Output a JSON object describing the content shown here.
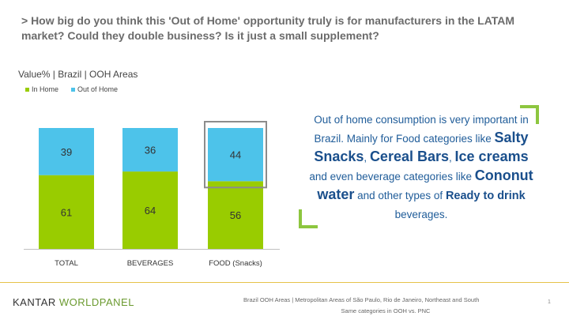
{
  "question": "> How big do you think this 'Out of Home' opportunity truly is for manufacturers in the LATAM market? Could they double business? Is it just a small supplement?",
  "subtitle": "Value% | Brazil | OOH Areas",
  "legend": [
    {
      "label": "In Home",
      "color": "#99cc00"
    },
    {
      "label": "Out of Home",
      "color": "#4dc3ea"
    }
  ],
  "chart_data": {
    "type": "bar",
    "stacked": true,
    "categories": [
      "TOTAL",
      "BEVERAGES",
      "FOOD (Snacks)"
    ],
    "series": [
      {
        "name": "In Home",
        "values": [
          61,
          64,
          56
        ],
        "color": "#99cc00"
      },
      {
        "name": "Out of Home",
        "values": [
          39,
          36,
          44
        ],
        "color": "#4dc3ea"
      }
    ],
    "title": "Value% | Brazil | OOH Areas",
    "xlabel": "",
    "ylabel": "",
    "ylim": [
      0,
      100
    ],
    "highlighted_category": "FOOD (Snacks)",
    "grid": false,
    "legend_position": "top-left"
  },
  "callout": {
    "p1": "Out of home consumption is very important in Brazil. Mainly for Food categories like ",
    "k1": "Salty Snacks",
    "p2": ", ",
    "k2": "Cereal Bars",
    "p3": ", ",
    "k3": "Ice creams",
    "p4": " and even beverage categories like ",
    "k4": "Cononut water",
    "p5": " and other types of ",
    "k5": "Ready to drink",
    "p6": " beverages."
  },
  "logo": {
    "part1": "KANTAR ",
    "part2": "WORLDPANEL"
  },
  "footnote": {
    "line1": "Brazil OOH Areas | Metropolitan Areas of São Paulo, Rio de Janeiro, Northeast and South",
    "line2": "Same categories in OOH vs. PNC"
  },
  "page_number": "1"
}
